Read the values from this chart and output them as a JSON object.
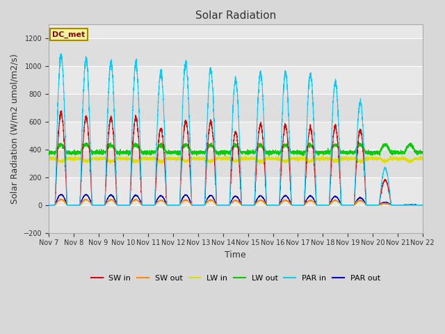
{
  "title": "Solar Radiation",
  "xlabel": "Time",
  "ylabel": "Solar Radiation (W/m2 umol/m2/s)",
  "ylim": [
    -200,
    1300
  ],
  "yticks": [
    -200,
    0,
    200,
    400,
    600,
    800,
    1000,
    1200
  ],
  "n_days": 15,
  "background_color": "#d8d8d8",
  "plot_bg_color": "#e8e8e8",
  "legend_label": "DC_met",
  "series_colors": {
    "SW_in": "#dd0000",
    "SW_out": "#ff8800",
    "LW_in": "#dddd00",
    "LW_out": "#00cc00",
    "PAR_in": "#00ccff",
    "PAR_out": "#0000cc"
  },
  "series_labels": [
    "SW in",
    "SW out",
    "LW in",
    "LW out",
    "PAR in",
    "PAR out"
  ],
  "SW_in_peaks": [
    660,
    630,
    625,
    630,
    550,
    605,
    595,
    525,
    580,
    570,
    555,
    565,
    540,
    180,
    0
  ],
  "PAR_in_peaks": [
    1080,
    1050,
    1025,
    1010,
    950,
    1025,
    975,
    905,
    950,
    955,
    945,
    885,
    740,
    265,
    0
  ],
  "LW_in_base": 335,
  "LW_out_base": 378,
  "PAR_out_day_base": 75,
  "SW_out_day_base": 50
}
